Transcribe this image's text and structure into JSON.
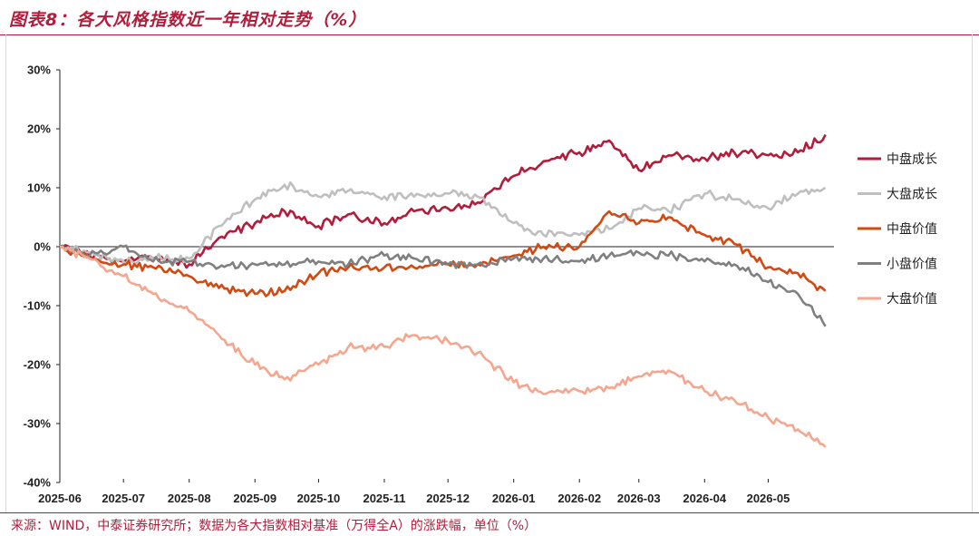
{
  "figure": {
    "title": "图表8：各大风格指数近一年相对走势（%）",
    "source": "来源：WIND，中泰证券研究所；数据为各大指数相对基准（万得全A）的涨跌幅，单位（%）"
  },
  "chart_data": {
    "type": "line",
    "title": "图表8：各大风格指数近一年相对走势（%）",
    "xlabel": "",
    "ylabel": "",
    "ylim": [
      -40,
      30
    ],
    "yticks": [
      30,
      20,
      10,
      0,
      -10,
      -20,
      -30,
      -40
    ],
    "ytick_labels": [
      "30%",
      "20%",
      "10%",
      "0%",
      "-10%",
      "-20%",
      "-30%",
      "-40%"
    ],
    "xlim": [
      "2025-06",
      "2026-06"
    ],
    "xtick_labels": [
      "2025-06",
      "2025-07",
      "2025-08",
      "2025-09",
      "2025-10",
      "2025-11",
      "2025-12",
      "2026-01",
      "2026-02",
      "2026-03",
      "2026-04",
      "2026-05"
    ],
    "grid": false,
    "legend": "right",
    "x": [
      "2025-06-01",
      "2025-06-15",
      "2025-07-01",
      "2025-07-15",
      "2025-08-01",
      "2025-08-15",
      "2025-09-01",
      "2025-09-15",
      "2025-10-01",
      "2025-10-15",
      "2025-11-01",
      "2025-11-15",
      "2025-12-01",
      "2025-12-15",
      "2026-01-01",
      "2026-01-15",
      "2026-02-01",
      "2026-02-15",
      "2026-03-01",
      "2026-03-15",
      "2026-04-01",
      "2026-04-15",
      "2026-05-01",
      "2026-05-15",
      "2026-05-28"
    ],
    "series": [
      {
        "name": "中盘成长",
        "color": "#b21d3c",
        "values": [
          0,
          -1.5,
          -2.5,
          -2,
          -3,
          1.5,
          4,
          6,
          3.5,
          5.5,
          4,
          6,
          6.5,
          7.5,
          12,
          14.5,
          16,
          18,
          13,
          15.5,
          15,
          16,
          15.5,
          16,
          19
        ]
      },
      {
        "name": "大盘成长",
        "color": "#bfbfbf",
        "values": [
          0,
          -1,
          -2.5,
          -2,
          -2,
          3.5,
          8,
          10.5,
          8.5,
          9.5,
          8.5,
          8.5,
          9,
          8.5,
          4,
          2,
          2,
          3,
          6.5,
          6,
          9,
          8,
          6.5,
          9,
          10
        ]
      },
      {
        "name": "中盘价值",
        "color": "#d24a12",
        "values": [
          0,
          -2,
          -3,
          -3.5,
          -5,
          -7,
          -8,
          -7.5,
          -4.5,
          -3.5,
          -3.5,
          -3.5,
          -3,
          -3,
          -1.5,
          0,
          0,
          6,
          4,
          5,
          2,
          0.5,
          -3.5,
          -4.5,
          -7.5
        ]
      },
      {
        "name": "小盘价值",
        "color": "#808080",
        "values": [
          0,
          -1.5,
          0,
          -2.5,
          -2.5,
          -3.5,
          -3,
          -3,
          -2.5,
          -3,
          -1.5,
          -2,
          -3,
          -3,
          -2,
          -2,
          -2.5,
          -1.5,
          -1,
          -1.5,
          -2.5,
          -3,
          -6,
          -8,
          -13.5
        ]
      },
      {
        "name": "大盘价值",
        "color": "#f4a68e",
        "values": [
          0,
          -2,
          -5,
          -8,
          -11,
          -15,
          -20,
          -22.5,
          -20,
          -17,
          -17,
          -15,
          -16,
          -18,
          -23,
          -25,
          -24.5,
          -24,
          -22,
          -21,
          -24.5,
          -26,
          -29,
          -31,
          -34
        ]
      }
    ]
  }
}
